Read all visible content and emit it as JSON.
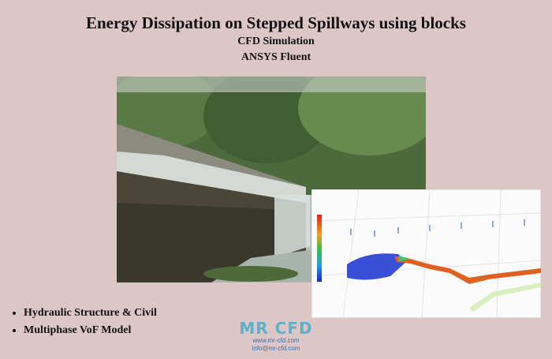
{
  "header": {
    "title": "Energy Dissipation on Stepped Spillways using blocks",
    "subtitle": "CFD Simulation",
    "software": "ANSYS Fluent"
  },
  "bullets": [
    "Hydraulic Structure & Civil",
    "Multiphase VoF Model"
  ],
  "logo": {
    "name": "MR CFD",
    "website": "www.mr-cfd.com",
    "email": "info@mr-cfd.com"
  }
}
